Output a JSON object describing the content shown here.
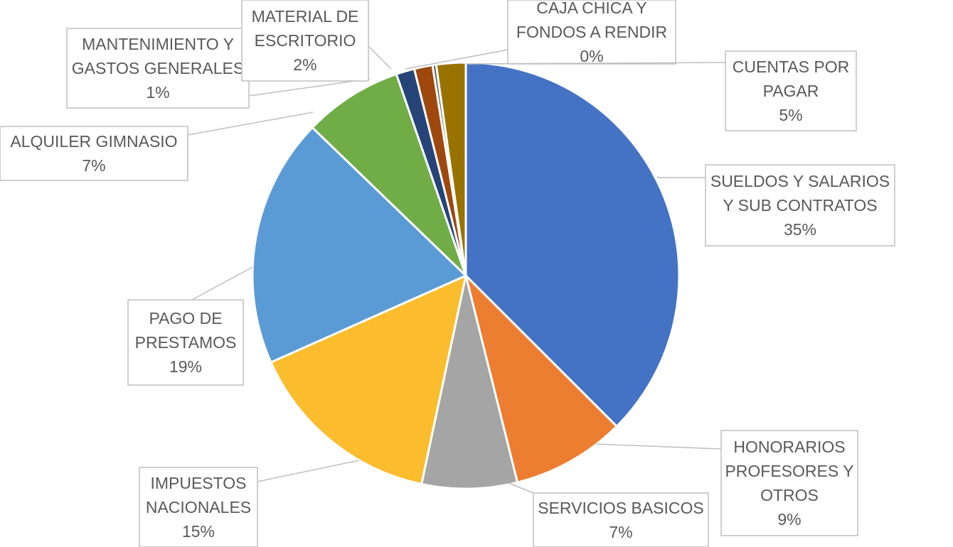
{
  "chart_data": {
    "type": "pie",
    "slices": [
      {
        "label": "SUELDOS Y SALARIOS Y SUB CONTRATOS",
        "lines": [
          "SUELDOS Y SALARIOS",
          "Y SUB CONTRATOS"
        ],
        "value": 35,
        "pct_label": "35%",
        "color": "#4472C4"
      },
      {
        "label": "HONORARIOS PROFESORES Y OTROS",
        "lines": [
          "HONORARIOS",
          "PROFESORES Y",
          "OTROS"
        ],
        "value": 9,
        "pct_label": "9%",
        "color": "#ED7D31"
      },
      {
        "label": "SERVICIOS BASICOS",
        "lines": [
          "SERVICIOS BASICOS"
        ],
        "value": 7,
        "pct_label": "7%",
        "color": "#A5A5A5"
      },
      {
        "label": "IMPUESTOS NACIONALES",
        "lines": [
          "IMPUESTOS",
          "NACIONALES"
        ],
        "value": 15,
        "pct_label": "15%",
        "color": "#FBBC2D"
      },
      {
        "label": "PAGO DE PRESTAMOS",
        "lines": [
          "PAGO DE",
          "PRESTAMOS"
        ],
        "value": 19,
        "pct_label": "19%",
        "color": "#5B9BD5"
      },
      {
        "label": "ALQUILER GIMNASIO",
        "lines": [
          "ALQUILER GIMNASIO"
        ],
        "value": 7,
        "pct_label": "7%",
        "color": "#70AD47"
      },
      {
        "label": "MANTENIMIENTO Y GASTOS GENERALES",
        "lines": [
          "MANTENIMIENTO Y",
          "GASTOS GENERALES"
        ],
        "value": 1,
        "pct_label": "1%",
        "color": "#264478"
      },
      {
        "label": "MATERIAL DE ESCRITORIO",
        "lines": [
          "MATERIAL DE",
          "ESCRITORIO"
        ],
        "value": 2,
        "pct_label": "2%",
        "color": "#9E480E"
      },
      {
        "label": "CAJA CHICA Y FONDOS A RENDIR",
        "lines": [
          "CAJA CHICA Y",
          "FONDOS A RENDIR"
        ],
        "value": 0,
        "pct_label": "0%",
        "color": "#636363"
      },
      {
        "label": "CUENTAS POR PAGAR",
        "lines": [
          "CUENTAS POR",
          "PAGAR"
        ],
        "value": 5,
        "pct_label": "5%",
        "color": "#997300"
      }
    ]
  }
}
